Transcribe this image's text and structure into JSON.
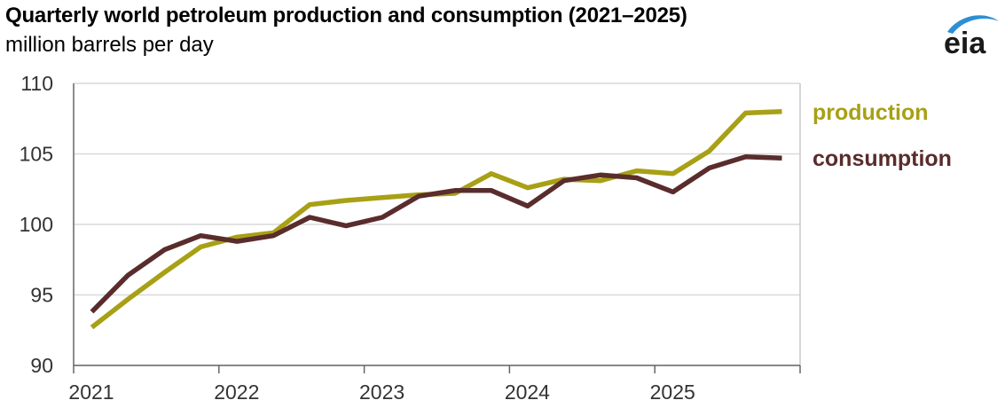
{
  "header": {
    "title": "Quarterly world petroleum production and consumption (2021–2025)",
    "subtitle": "million barrels per day",
    "logo_text": "eia"
  },
  "colors": {
    "production": "#a8a015",
    "consumption": "#5a2c2c",
    "logo_blue": "#2c8fd4",
    "grid": "#d9d9d9"
  },
  "chart_data": {
    "type": "line",
    "title": "Quarterly world petroleum production and consumption (2021–2025)",
    "ylabel": "million barrels per day",
    "xlabel": "",
    "ylim": [
      90,
      110
    ],
    "yticks": [
      90,
      95,
      100,
      105,
      110
    ],
    "xlim": [
      2021.0,
      2026.0
    ],
    "xticks": [
      {
        "label": "2021",
        "value": 2021.0
      },
      {
        "label": "2022",
        "value": 2022.0
      },
      {
        "label": "2023",
        "value": 2023.0
      },
      {
        "label": "2024",
        "value": 2024.0
      },
      {
        "label": "2025",
        "value": 2025.0
      }
    ],
    "x": [
      2021.125,
      2021.375,
      2021.625,
      2021.875,
      2022.125,
      2022.375,
      2022.625,
      2022.875,
      2023.125,
      2023.375,
      2023.625,
      2023.875,
      2024.125,
      2024.375,
      2024.625,
      2024.875,
      2025.125,
      2025.375,
      2025.625,
      2025.875
    ],
    "series": [
      {
        "name": "production",
        "color": "#a8a015",
        "values": [
          92.7,
          94.7,
          96.6,
          98.4,
          99.1,
          99.4,
          101.4,
          101.7,
          101.9,
          102.1,
          102.2,
          103.6,
          102.6,
          103.2,
          103.1,
          103.8,
          103.6,
          105.2,
          107.9,
          108.0
        ]
      },
      {
        "name": "consumption",
        "color": "#5a2c2c",
        "values": [
          93.8,
          96.4,
          98.2,
          99.2,
          98.8,
          99.2,
          100.5,
          99.9,
          100.5,
          102.0,
          102.4,
          102.4,
          101.3,
          103.1,
          103.5,
          103.3,
          102.3,
          104.0,
          104.8,
          104.7
        ]
      }
    ],
    "grid": true,
    "legend": "right, next to line ends"
  }
}
